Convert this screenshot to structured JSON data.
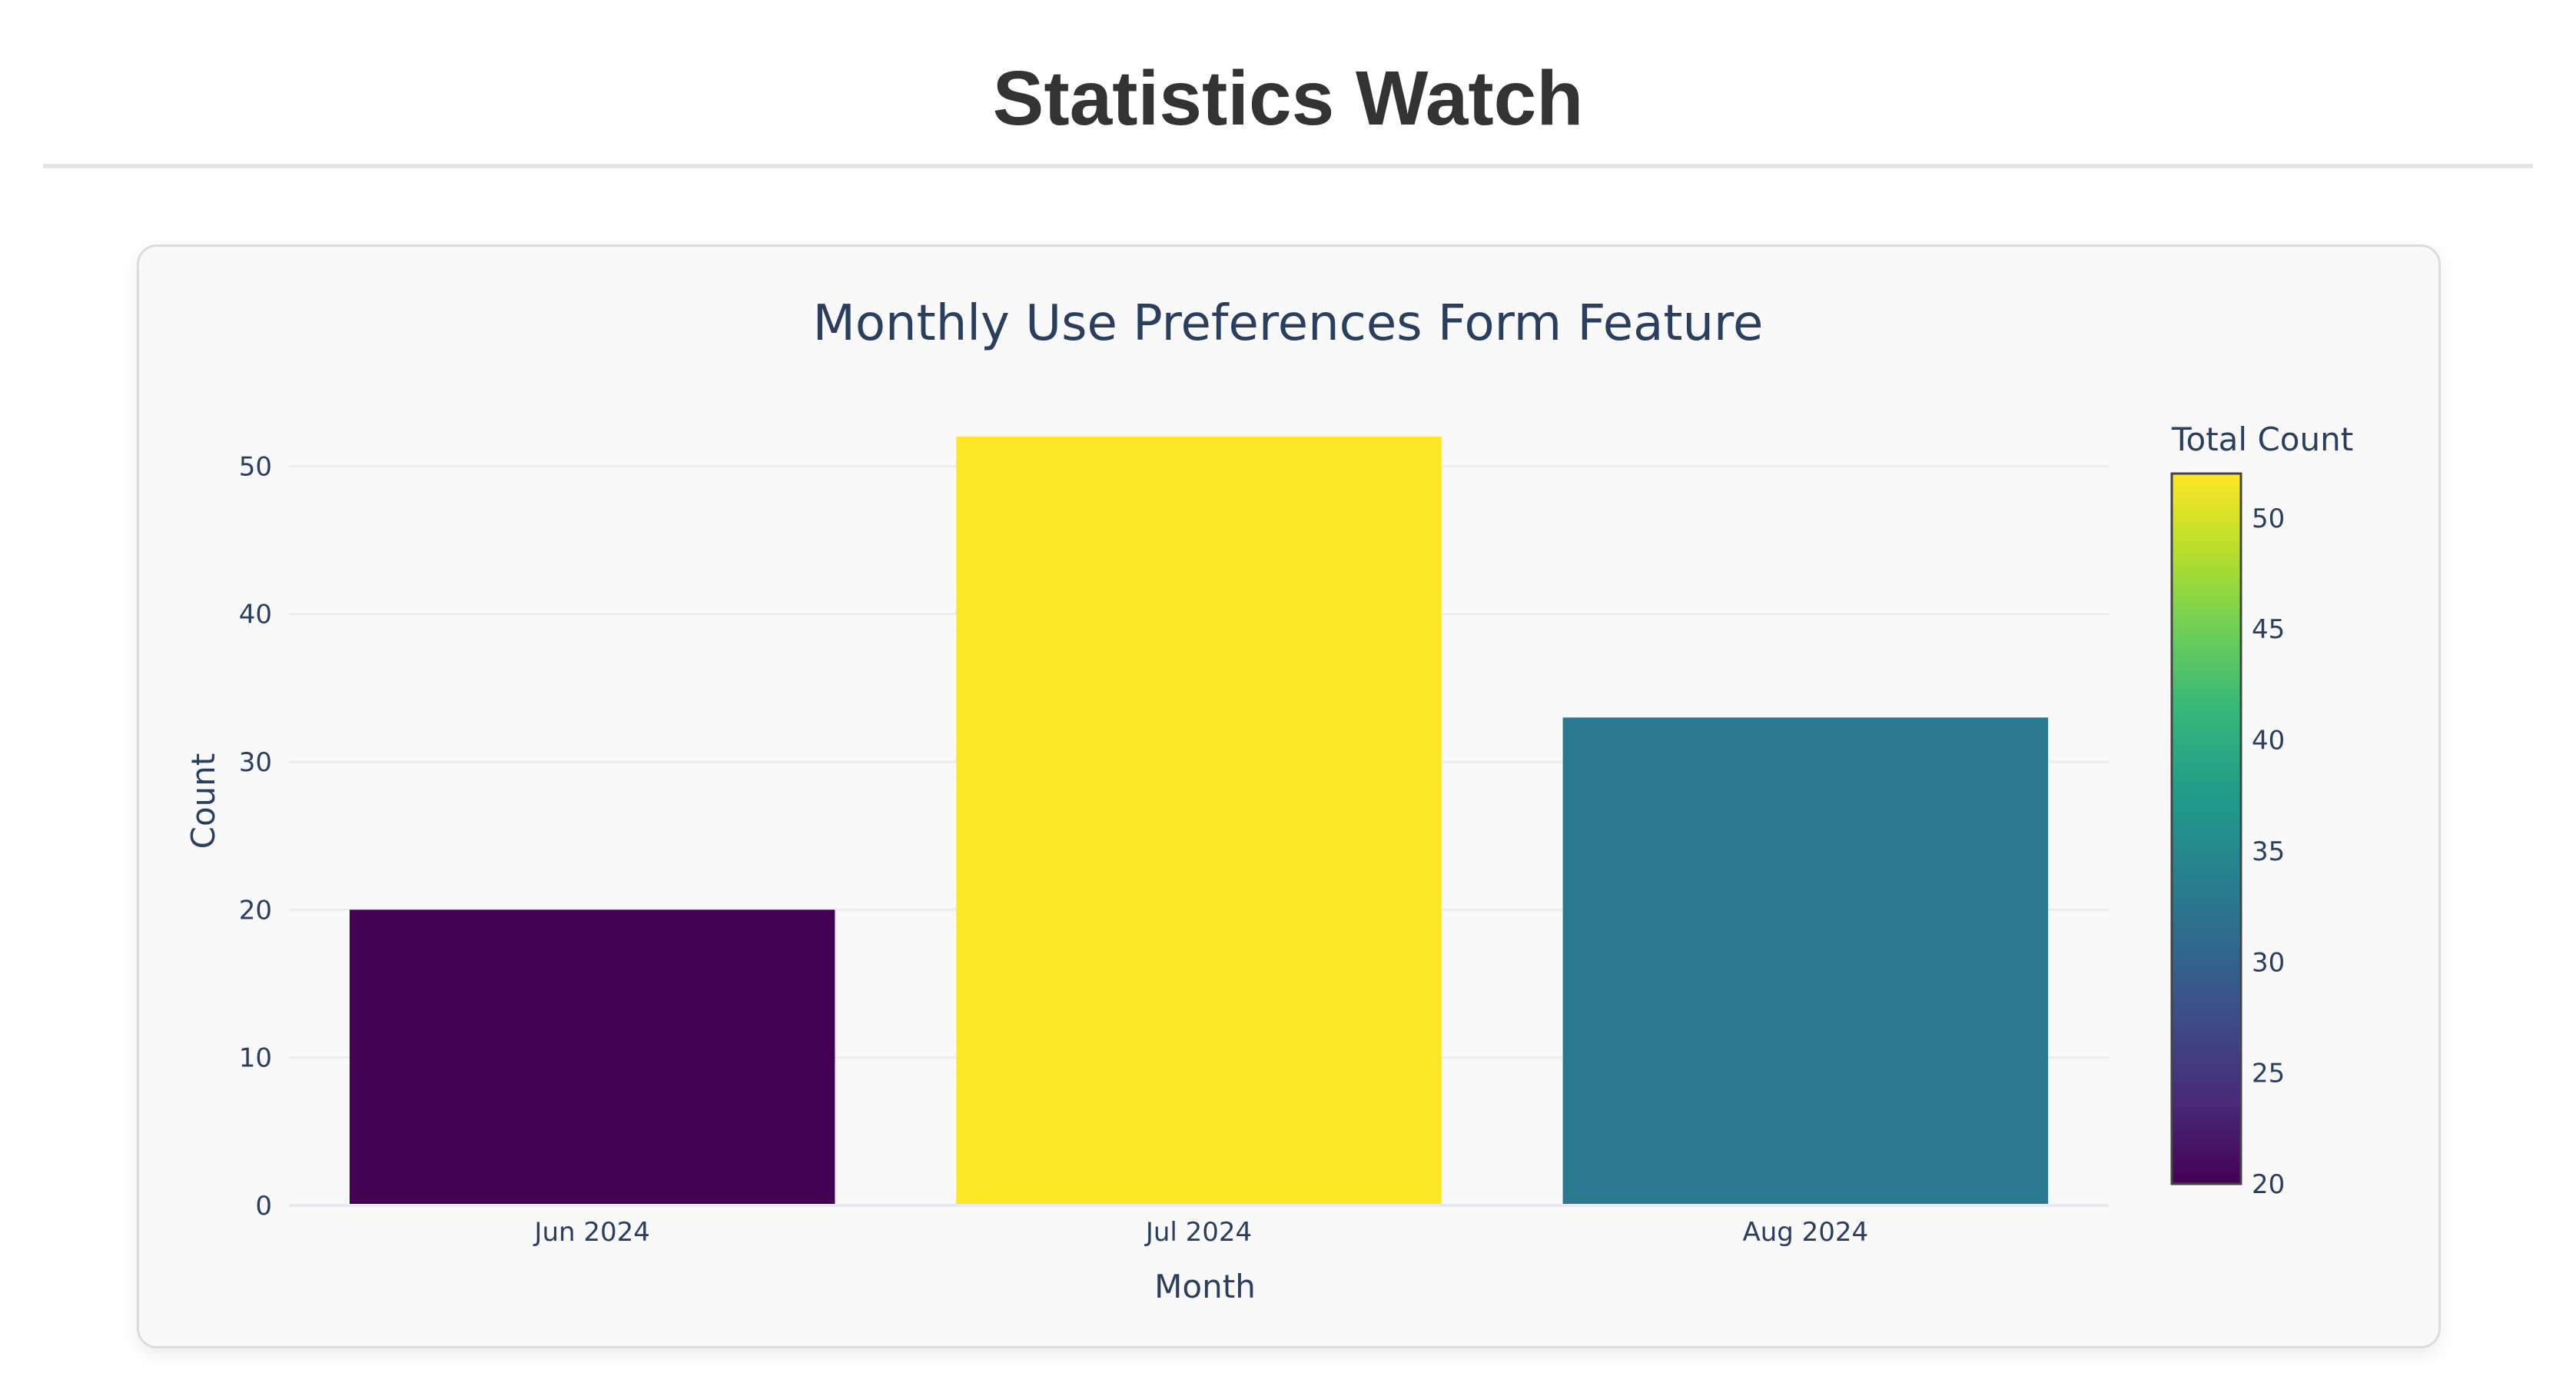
{
  "page": {
    "title": "Statistics Watch"
  },
  "chart_data": {
    "type": "bar",
    "title": "Monthly Use Preferences Form Feature",
    "xlabel": "Month",
    "ylabel": "Count",
    "categories": [
      "Jun 2024",
      "Jul 2024",
      "Aug 2024"
    ],
    "values": [
      20,
      52,
      33
    ],
    "ylim": [
      0,
      54.7
    ],
    "yticks": [
      0,
      10,
      20,
      30,
      40,
      50
    ],
    "grid": true,
    "colorscale": {
      "name": "Viridis",
      "title": "Total Count",
      "range": [
        20,
        52
      ],
      "ticks": [
        20,
        25,
        30,
        35,
        40,
        45,
        50
      ],
      "colors": [
        "#440154",
        "#482878",
        "#3e4989",
        "#31688e",
        "#26828e",
        "#1f9e89",
        "#35b779",
        "#6ece58",
        "#b5de2b",
        "#fde725"
      ]
    }
  }
}
